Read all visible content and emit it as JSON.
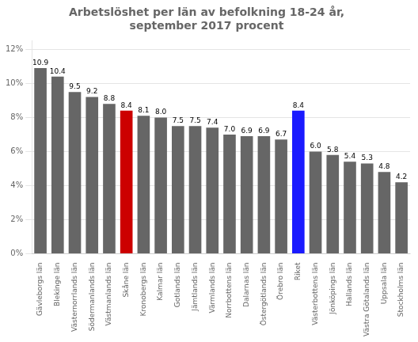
{
  "chart_data": {
    "type": "bar",
    "title": "Arbetslöshet per län av befolkning 18-24 år,\nseptember 2017 procent",
    "categories": [
      "Gävleborgs län",
      "Blekinge län",
      "Västernorrlands län",
      "Södermanlands län",
      "Västmanlands län",
      "Skåne län",
      "Kronobergs län",
      "Kalmar län",
      "Gotlands län",
      "Jämtlands län",
      "Värmlands län",
      "Norrbottens län",
      "Dalarnas län",
      "Östergötlands län",
      "Örebro län",
      "Riket",
      "Västerbottens län",
      "Jönköpings län",
      "Hallands län",
      "Västra Götalands län",
      "Uppsala län",
      "Stockholms län"
    ],
    "values": [
      10.9,
      10.4,
      9.5,
      9.2,
      8.8,
      8.4,
      8.1,
      8.0,
      7.5,
      7.5,
      7.4,
      7.0,
      6.9,
      6.9,
      6.7,
      8.4,
      6.0,
      5.8,
      5.4,
      5.3,
      4.8,
      4.2
    ],
    "value_labels": [
      "10.9",
      "10.4",
      "9.5",
      "9.2",
      "8.8",
      "8.4",
      "8.1",
      "8.0",
      "7.5",
      "7.5",
      "7.4",
      "7.0",
      "6.9",
      "6.9",
      "6.7",
      "8.4",
      "6.0",
      "5.8",
      "5.4",
      "5.3",
      "4.8",
      "4.2"
    ],
    "colors": [
      "#666666",
      "#666666",
      "#666666",
      "#666666",
      "#666666",
      "#cc0000",
      "#666666",
      "#666666",
      "#666666",
      "#666666",
      "#666666",
      "#666666",
      "#666666",
      "#666666",
      "#666666",
      "#1a1aff",
      "#666666",
      "#666666",
      "#666666",
      "#666666",
      "#666666",
      "#666666"
    ],
    "ylim": [
      0,
      12.5
    ],
    "yticks": [
      {
        "value": 0,
        "label": "0%"
      },
      {
        "value": 2,
        "label": "2%"
      },
      {
        "value": 4,
        "label": "4%"
      },
      {
        "value": 6,
        "label": "6%"
      },
      {
        "value": 8,
        "label": "8%"
      },
      {
        "value": 10,
        "label": "10%"
      },
      {
        "value": 12,
        "label": "12%"
      }
    ],
    "grid": true,
    "data_labels": true
  }
}
